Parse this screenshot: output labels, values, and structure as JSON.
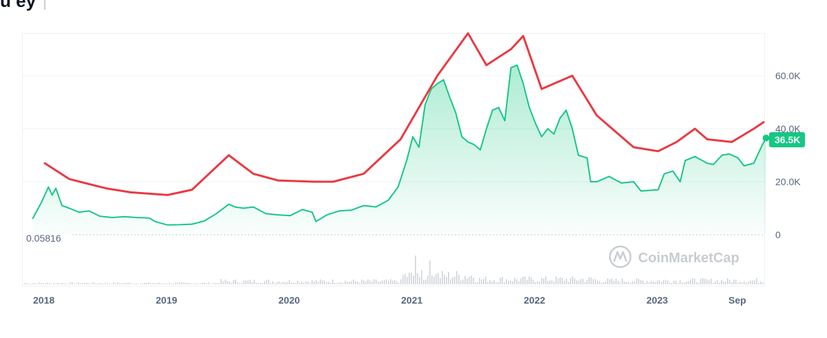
{
  "header": {
    "fragment": "u ey"
  },
  "watermark": {
    "text": "CoinMarketCap"
  },
  "baseline_label": "0.05816",
  "current_badge": "36.5K",
  "colors": {
    "price_line": "#16c784",
    "band_line": "#ea3943",
    "grid": "#eef0f3",
    "badge_bg": "#16c784"
  },
  "chart_data": {
    "type": "line",
    "y_ticks": [
      "0",
      "20.0K",
      "40.0K",
      "60.0K"
    ],
    "x_ticks": [
      "2018",
      "2019",
      "2020",
      "2021",
      "2022",
      "2023",
      "Sep"
    ],
    "ylim": [
      0,
      75000
    ],
    "grid": true,
    "series": [
      {
        "values": [
          [
            2017.9,
            6000
          ],
          [
            2017.97,
            12000
          ],
          [
            2018.03,
            18000
          ],
          [
            2018.06,
            15000
          ],
          [
            2018.09,
            17500
          ],
          [
            2018.14,
            11000
          ],
          [
            2018.2,
            10000
          ],
          [
            2018.28,
            8500
          ],
          [
            2018.36,
            9000
          ],
          [
            2018.45,
            7000
          ],
          [
            2018.55,
            6500
          ],
          [
            2018.65,
            6800
          ],
          [
            2018.75,
            6500
          ],
          [
            2018.85,
            6300
          ],
          [
            2018.9,
            5000
          ],
          [
            2019.0,
            3700
          ],
          [
            2019.1,
            3800
          ],
          [
            2019.2,
            4000
          ],
          [
            2019.3,
            5200
          ],
          [
            2019.4,
            8000
          ],
          [
            2019.5,
            11500
          ],
          [
            2019.55,
            10500
          ],
          [
            2019.62,
            10000
          ],
          [
            2019.7,
            10500
          ],
          [
            2019.8,
            8000
          ],
          [
            2019.9,
            7500
          ],
          [
            2020.0,
            7200
          ],
          [
            2020.1,
            9500
          ],
          [
            2020.18,
            8500
          ],
          [
            2020.21,
            5000
          ],
          [
            2020.3,
            7500
          ],
          [
            2020.4,
            9000
          ],
          [
            2020.5,
            9300
          ],
          [
            2020.6,
            11000
          ],
          [
            2020.7,
            10500
          ],
          [
            2020.8,
            13000
          ],
          [
            2020.88,
            18000
          ],
          [
            2020.95,
            28000
          ],
          [
            2021.0,
            37000
          ],
          [
            2021.05,
            33000
          ],
          [
            2021.1,
            49000
          ],
          [
            2021.15,
            55000
          ],
          [
            2021.2,
            57000
          ],
          [
            2021.25,
            58500
          ],
          [
            2021.3,
            52000
          ],
          [
            2021.35,
            46000
          ],
          [
            2021.4,
            37000
          ],
          [
            2021.45,
            35000
          ],
          [
            2021.5,
            34000
          ],
          [
            2021.55,
            32000
          ],
          [
            2021.6,
            40000
          ],
          [
            2021.65,
            47000
          ],
          [
            2021.7,
            48000
          ],
          [
            2021.75,
            43000
          ],
          [
            2021.8,
            63000
          ],
          [
            2021.85,
            64000
          ],
          [
            2021.9,
            57000
          ],
          [
            2021.95,
            48000
          ],
          [
            2022.0,
            42000
          ],
          [
            2022.05,
            37000
          ],
          [
            2022.1,
            40000
          ],
          [
            2022.15,
            38000
          ],
          [
            2022.2,
            44000
          ],
          [
            2022.25,
            47000
          ],
          [
            2022.3,
            40000
          ],
          [
            2022.35,
            30000
          ],
          [
            2022.42,
            29000
          ],
          [
            2022.45,
            20000
          ],
          [
            2022.5,
            20000
          ],
          [
            2022.6,
            22000
          ],
          [
            2022.7,
            19500
          ],
          [
            2022.8,
            20000
          ],
          [
            2022.86,
            16500
          ],
          [
            2022.95,
            16800
          ],
          [
            2023.0,
            17000
          ],
          [
            2023.05,
            23000
          ],
          [
            2023.12,
            24000
          ],
          [
            2023.18,
            20000
          ],
          [
            2023.22,
            28000
          ],
          [
            2023.3,
            29500
          ],
          [
            2023.4,
            27000
          ],
          [
            2023.45,
            26500
          ],
          [
            2023.52,
            30000
          ],
          [
            2023.58,
            30500
          ],
          [
            2023.65,
            29000
          ],
          [
            2023.7,
            26000
          ],
          [
            2023.78,
            27000
          ],
          [
            2023.85,
            34000
          ],
          [
            2023.88,
            36500
          ]
        ]
      },
      {
        "values": [
          [
            2018.0,
            27000
          ],
          [
            2018.2,
            21000
          ],
          [
            2018.5,
            17500
          ],
          [
            2018.7,
            16000
          ],
          [
            2019.0,
            15000
          ],
          [
            2019.2,
            17000
          ],
          [
            2019.5,
            30000
          ],
          [
            2019.7,
            23000
          ],
          [
            2019.9,
            20500
          ],
          [
            2020.2,
            20000
          ],
          [
            2020.35,
            20000
          ],
          [
            2020.6,
            23000
          ],
          [
            2020.9,
            36000
          ],
          [
            2021.2,
            60000
          ],
          [
            2021.45,
            76000
          ],
          [
            2021.6,
            64000
          ],
          [
            2021.8,
            70000
          ],
          [
            2021.9,
            75000
          ],
          [
            2022.05,
            55000
          ],
          [
            2022.3,
            60000
          ],
          [
            2022.5,
            45000
          ],
          [
            2022.8,
            33000
          ],
          [
            2023.0,
            31500
          ],
          [
            2023.15,
            35000
          ],
          [
            2023.3,
            40000
          ],
          [
            2023.4,
            36000
          ],
          [
            2023.6,
            35000
          ],
          [
            2023.78,
            40000
          ],
          [
            2023.86,
            42500
          ]
        ]
      }
    ]
  }
}
